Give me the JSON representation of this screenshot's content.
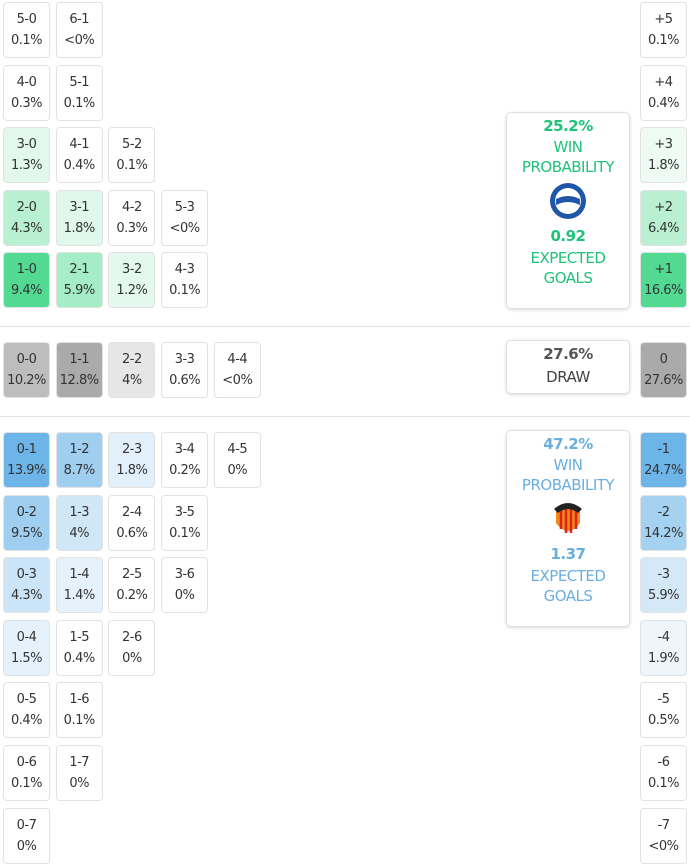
{
  "home": {
    "rows": [
      [
        {
          "score": "5-0",
          "pct": "0.1%",
          "color": "#ffffff"
        },
        {
          "score": "6-1",
          "pct": "<0%",
          "color": "#ffffff"
        }
      ],
      [
        {
          "score": "4-0",
          "pct": "0.3%",
          "color": "#ffffff"
        },
        {
          "score": "5-1",
          "pct": "0.1%",
          "color": "#ffffff"
        }
      ],
      [
        {
          "score": "3-0",
          "pct": "1.3%",
          "color": "#e2f8ec"
        },
        {
          "score": "4-1",
          "pct": "0.4%",
          "color": "#ffffff"
        },
        {
          "score": "5-2",
          "pct": "0.1%",
          "color": "#ffffff"
        }
      ],
      [
        {
          "score": "2-0",
          "pct": "4.3%",
          "color": "#b9f0d2"
        },
        {
          "score": "3-1",
          "pct": "1.8%",
          "color": "#e0f8eb"
        },
        {
          "score": "4-2",
          "pct": "0.3%",
          "color": "#ffffff"
        },
        {
          "score": "5-3",
          "pct": "<0%",
          "color": "#ffffff"
        }
      ],
      [
        {
          "score": "1-0",
          "pct": "9.4%",
          "color": "#52da92"
        },
        {
          "score": "2-1",
          "pct": "5.9%",
          "color": "#a5edc6"
        },
        {
          "score": "3-2",
          "pct": "1.2%",
          "color": "#e4f9ee"
        },
        {
          "score": "4-3",
          "pct": "0.1%",
          "color": "#ffffff"
        }
      ]
    ],
    "margins": [
      {
        "label": "+5",
        "pct": "0.1%",
        "color": "#ffffff"
      },
      {
        "label": "+4",
        "pct": "0.4%",
        "color": "#ffffff"
      },
      {
        "label": "+3",
        "pct": "1.8%",
        "color": "#eefbf4"
      },
      {
        "label": "+2",
        "pct": "6.4%",
        "color": "#b9f0d2"
      },
      {
        "label": "+1",
        "pct": "16.6%",
        "color": "#52da92"
      }
    ],
    "win_pct": "25.2%",
    "win_label": "WIN PROBABILITY",
    "xg": "0.92",
    "xg_label": "EXPECTED GOALS"
  },
  "draw": {
    "rows": [
      [
        {
          "score": "0-0",
          "pct": "10.2%",
          "color": "#bdbdbd"
        },
        {
          "score": "1-1",
          "pct": "12.8%",
          "color": "#aaaaaa"
        },
        {
          "score": "2-2",
          "pct": "4%",
          "color": "#e6e6e6"
        },
        {
          "score": "3-3",
          "pct": "0.6%",
          "color": "#ffffff"
        },
        {
          "score": "4-4",
          "pct": "<0%",
          "color": "#ffffff"
        }
      ]
    ],
    "margins": [
      {
        "label": "0",
        "pct": "27.6%",
        "color": "#aaaaaa"
      }
    ],
    "pct": "27.6%",
    "label": "DRAW"
  },
  "away": {
    "rows": [
      [
        {
          "score": "0-1",
          "pct": "13.9%",
          "color": "#6db4e8"
        },
        {
          "score": "1-2",
          "pct": "8.7%",
          "color": "#9fcef1"
        },
        {
          "score": "2-3",
          "pct": "1.8%",
          "color": "#e2f0fb"
        },
        {
          "score": "3-4",
          "pct": "0.2%",
          "color": "#ffffff"
        },
        {
          "score": "4-5",
          "pct": "0%",
          "color": "#ffffff"
        }
      ],
      [
        {
          "score": "0-2",
          "pct": "9.5%",
          "color": "#9fcef1"
        },
        {
          "score": "1-3",
          "pct": "4%",
          "color": "#d0e7f8"
        },
        {
          "score": "2-4",
          "pct": "0.6%",
          "color": "#ffffff"
        },
        {
          "score": "3-5",
          "pct": "0.1%",
          "color": "#ffffff"
        }
      ],
      [
        {
          "score": "0-3",
          "pct": "4.3%",
          "color": "#cbe4f7"
        },
        {
          "score": "1-4",
          "pct": "1.4%",
          "color": "#e6f2fb"
        },
        {
          "score": "2-5",
          "pct": "0.2%",
          "color": "#ffffff"
        },
        {
          "score": "3-6",
          "pct": "0%",
          "color": "#ffffff"
        }
      ],
      [
        {
          "score": "0-4",
          "pct": "1.5%",
          "color": "#e6f2fb"
        },
        {
          "score": "1-5",
          "pct": "0.4%",
          "color": "#ffffff"
        },
        {
          "score": "2-6",
          "pct": "0%",
          "color": "#ffffff"
        }
      ],
      [
        {
          "score": "0-5",
          "pct": "0.4%",
          "color": "#ffffff"
        },
        {
          "score": "1-6",
          "pct": "0.1%",
          "color": "#ffffff"
        }
      ],
      [
        {
          "score": "0-6",
          "pct": "0.1%",
          "color": "#ffffff"
        },
        {
          "score": "1-7",
          "pct": "0%",
          "color": "#ffffff"
        }
      ],
      [
        {
          "score": "0-7",
          "pct": "0%",
          "color": "#ffffff"
        }
      ]
    ],
    "margins": [
      {
        "label": "-1",
        "pct": "24.7%",
        "color": "#6db4e8"
      },
      {
        "label": "-2",
        "pct": "14.2%",
        "color": "#a6d2f1"
      },
      {
        "label": "-3",
        "pct": "5.9%",
        "color": "#d4e9f8"
      },
      {
        "label": "-4",
        "pct": "1.9%",
        "color": "#eef6fc"
      },
      {
        "label": "-5",
        "pct": "0.5%",
        "color": "#ffffff"
      },
      {
        "label": "-6",
        "pct": "0.1%",
        "color": "#ffffff"
      },
      {
        "label": "-7",
        "pct": "<0%",
        "color": "#ffffff"
      }
    ],
    "win_pct": "47.2%",
    "win_label": "WIN PROBABILITY",
    "xg": "1.37",
    "xg_label": "EXPECTED GOALS"
  }
}
